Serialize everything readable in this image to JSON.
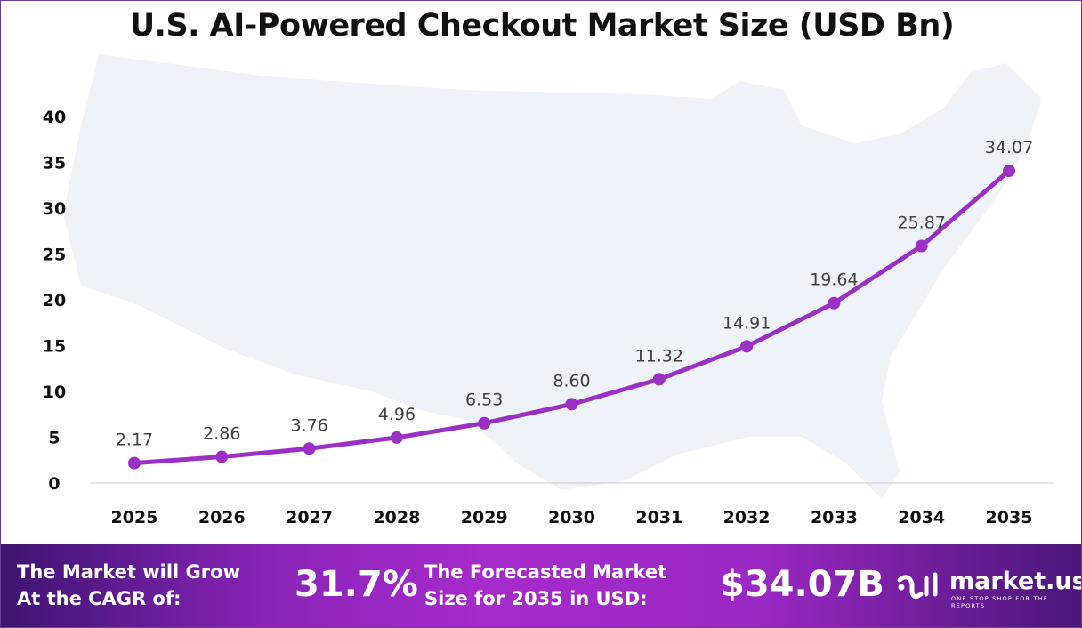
{
  "chart_data": {
    "type": "line",
    "title": "U.S. AI-Powered Checkout Market Size (USD Bn)",
    "categories": [
      "2025",
      "2026",
      "2027",
      "2028",
      "2029",
      "2030",
      "2031",
      "2032",
      "2033",
      "2034",
      "2035"
    ],
    "values": [
      2.17,
      2.86,
      3.76,
      4.96,
      6.53,
      8.6,
      11.32,
      14.91,
      19.64,
      25.87,
      34.07
    ],
    "data_labels": [
      "2.17",
      "2.86",
      "3.76",
      "4.96",
      "6.53",
      "8.60",
      "11.32",
      "14.91",
      "19.64",
      "25.87",
      "34.07"
    ],
    "yticks": [
      "0",
      "5",
      "10",
      "15",
      "20",
      "25",
      "30",
      "35",
      "40"
    ],
    "ylim": [
      0,
      40
    ],
    "grid": false,
    "line_color": "#9b30c4"
  },
  "footer": {
    "cagr_label": [
      "The Market will Grow",
      "At the CAGR of:"
    ],
    "cagr_value": "31.7%",
    "forecast_label": [
      "The Forecasted Market",
      "Size for 2035 in USD:"
    ],
    "forecast_value": "$34.07B",
    "logo_name": "market.us",
    "logo_tagline": "ONE STOP SHOP FOR THE REPORTS"
  }
}
